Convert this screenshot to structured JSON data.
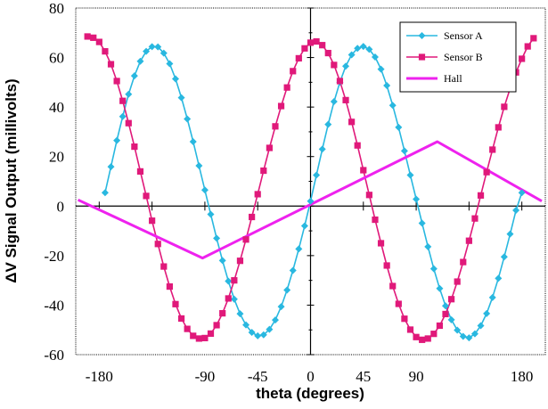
{
  "chart_data": {
    "type": "line",
    "title": "",
    "xlabel": "theta (degrees)",
    "ylabel": "ΔV Signal Output (millivolts)",
    "xlim": [
      -200,
      200
    ],
    "ylim": [
      -60,
      80
    ],
    "x_ticks": [
      -180,
      -90,
      -45,
      0,
      45,
      90,
      180
    ],
    "y_ticks": [
      80,
      60,
      40,
      20,
      0,
      -20,
      -40,
      -60
    ],
    "legend_position": "top-right",
    "series": [
      {
        "name": "Sensor A",
        "color": "#29b8e0",
        "marker": "diamond",
        "x": [
          -175,
          -170,
          -165,
          -160,
          -155,
          -150,
          -145,
          -140,
          -135,
          -130,
          -125,
          -120,
          -115,
          -110,
          -105,
          -100,
          -95,
          -90,
          -85,
          -80,
          -75,
          -70,
          -65,
          -60,
          -55,
          -50,
          -45,
          -40,
          -35,
          -30,
          -25,
          -20,
          -15,
          -10,
          -5,
          0,
          5,
          10,
          15,
          20,
          25,
          30,
          35,
          40,
          45,
          50,
          55,
          60,
          65,
          70,
          75,
          80,
          85,
          90,
          95,
          100,
          105,
          110,
          115,
          120,
          125,
          130,
          135,
          140,
          145,
          150,
          155,
          160,
          165,
          170,
          175,
          180
        ],
        "y": [
          5.4,
          15.9,
          26.5,
          36.2,
          45.2,
          52.6,
          58.5,
          62.5,
          64.4,
          64.3,
          61.8,
          57.5,
          51.4,
          43.8,
          35.2,
          26.0,
          16.3,
          6.5,
          -3.3,
          -13.0,
          -22.0,
          -30.3,
          -37.6,
          -43.5,
          -48.0,
          -51.0,
          -52.4,
          -52.0,
          -49.8,
          -46.0,
          -40.6,
          -33.9,
          -26.0,
          -17.3,
          -8.0,
          2.0,
          12.5,
          23.0,
          33.0,
          42.2,
          50.0,
          56.5,
          61.1,
          63.7,
          64.5,
          63.3,
          60.2,
          55.3,
          48.7,
          40.7,
          31.8,
          22.3,
          12.5,
          2.8,
          -6.9,
          -16.4,
          -25.3,
          -33.3,
          -40.3,
          -45.9,
          -50.1,
          -52.6,
          -53.2,
          -51.6,
          -48.3,
          -43.4,
          -36.9,
          -29.2,
          -20.5,
          -11.3,
          -1.7,
          5.4
        ]
      },
      {
        "name": "Sensor B",
        "color": "#e0197a",
        "marker": "square",
        "x": [
          -190,
          -185,
          -180,
          -175,
          -170,
          -165,
          -160,
          -155,
          -150,
          -145,
          -140,
          -135,
          -130,
          -125,
          -120,
          -115,
          -110,
          -105,
          -100,
          -95,
          -90,
          -85,
          -80,
          -75,
          -70,
          -65,
          -60,
          -55,
          -50,
          -45,
          -40,
          -35,
          -30,
          -25,
          -20,
          -15,
          -10,
          -5,
          0,
          5,
          10,
          15,
          20,
          25,
          30,
          35,
          40,
          45,
          50,
          55,
          60,
          65,
          70,
          75,
          80,
          85,
          90,
          95,
          100,
          105,
          110,
          115,
          120,
          125,
          130,
          135,
          140,
          145,
          150,
          155,
          160,
          165,
          170,
          175,
          180,
          185,
          190
        ],
        "y": [
          68.5,
          68.0,
          66.3,
          62.5,
          57.3,
          50.5,
          42.5,
          33.5,
          24.0,
          14.0,
          4.1,
          -5.9,
          -15.3,
          -24.4,
          -32.5,
          -39.6,
          -45.4,
          -49.6,
          -52.4,
          -53.5,
          -53.3,
          -51.5,
          -48.1,
          -43.3,
          -37.3,
          -30.0,
          -22.1,
          -13.5,
          -4.4,
          4.8,
          14.3,
          23.5,
          32.2,
          40.4,
          47.9,
          54.5,
          59.7,
          63.7,
          66.0,
          66.5,
          65.0,
          61.8,
          57.0,
          50.5,
          42.8,
          34.0,
          24.5,
          14.5,
          4.5,
          -5.5,
          -15.0,
          -24.0,
          -32.3,
          -39.5,
          -45.5,
          -49.9,
          -52.9,
          -54.0,
          -53.5,
          -51.6,
          -48.3,
          -43.6,
          -37.6,
          -30.5,
          -22.6,
          -14.0,
          -5.0,
          4.3,
          13.7,
          22.8,
          31.8,
          40.1,
          47.5,
          54.0,
          59.5,
          64.5,
          67.8
        ]
      },
      {
        "name": "Hall",
        "color": "#ee22ee",
        "marker": "none",
        "x": [
          -198,
          -92,
          108,
          197
        ],
        "y": [
          2.5,
          -21,
          26,
          2
        ]
      }
    ]
  }
}
